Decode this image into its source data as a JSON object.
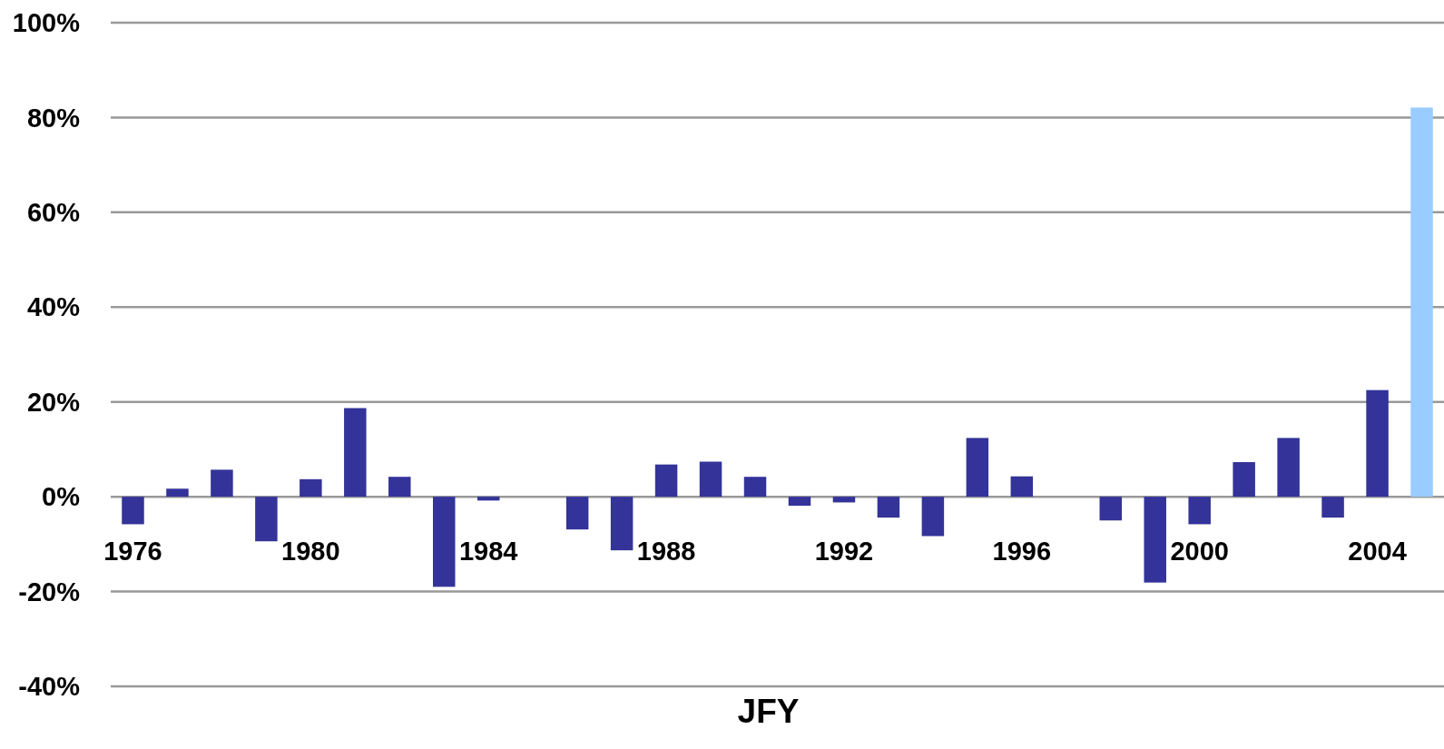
{
  "chart_data": {
    "type": "bar",
    "xlabel": "JFY",
    "categories": [
      "1976",
      null,
      null,
      null,
      "1980",
      null,
      null,
      null,
      "1984",
      null,
      null,
      null,
      "1988",
      null,
      null,
      null,
      "1992",
      null,
      null,
      null,
      "1996",
      null,
      null,
      null,
      "2000",
      null,
      null,
      null,
      "2004",
      null
    ],
    "values": [
      -5.8,
      1.7,
      5.7,
      -9.4,
      3.7,
      18.7,
      4.2,
      -19.0,
      -0.8,
      null,
      -6.9,
      -11.3,
      6.8,
      7.4,
      4.2,
      -1.9,
      -1.2,
      -4.4,
      -8.3,
      12.4,
      4.3,
      null,
      -5.0,
      -18.1,
      -5.8,
      7.3,
      12.4,
      -4.4,
      22.5,
      82.1
    ],
    "colors": [
      "#333399",
      "#333399",
      "#333399",
      "#333399",
      "#333399",
      "#333399",
      "#333399",
      "#333399",
      "#333399",
      "#333399",
      "#333399",
      "#333399",
      "#333399",
      "#333399",
      "#333399",
      "#333399",
      "#333399",
      "#333399",
      "#333399",
      "#333399",
      "#333399",
      "#333399",
      "#333399",
      "#333399",
      "#333399",
      "#333399",
      "#333399",
      "#333399",
      "#333399",
      "#99ccff"
    ],
    "ylim": [
      -40,
      100
    ],
    "yticks": [
      {
        "value": -40,
        "label": "-40%"
      },
      {
        "value": -20,
        "label": "-20%"
      },
      {
        "value": 0,
        "label": "0%"
      },
      {
        "value": 20,
        "label": "20%"
      },
      {
        "value": 40,
        "label": "40%"
      },
      {
        "value": 60,
        "label": "60%"
      },
      {
        "value": 80,
        "label": "80%"
      },
      {
        "value": 100,
        "label": "100%"
      }
    ],
    "grid": "y"
  }
}
